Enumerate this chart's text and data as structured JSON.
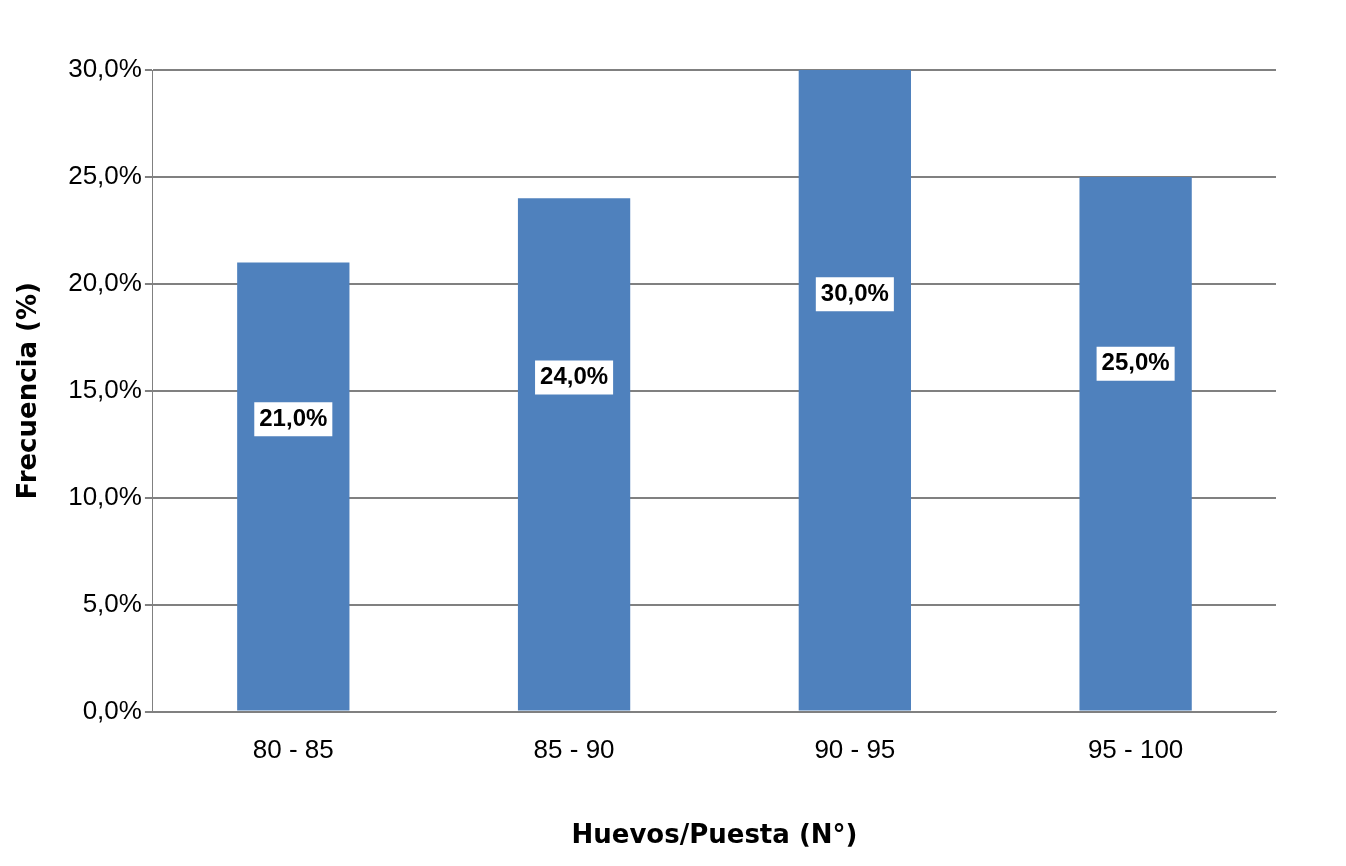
{
  "chart_data": {
    "type": "bar",
    "xlabel": "Huevos/Puesta (N°)",
    "ylabel": "Frecuencia (%)",
    "categories": [
      "80 - 85",
      "85 - 90",
      "90 - 95",
      "95 - 100"
    ],
    "values": [
      21,
      24,
      30,
      25
    ],
    "value_labels": [
      "21,0%",
      "24,0%",
      "30,0%",
      "25,0%"
    ],
    "color": "#4f81bd",
    "ylim": [
      0,
      30
    ],
    "yticks": [
      {
        "value": 0,
        "label": "0,0%"
      },
      {
        "value": 5,
        "label": "5,0%"
      },
      {
        "value": 10,
        "label": "10,0%"
      },
      {
        "value": 15,
        "label": "15,0%"
      },
      {
        "value": 20,
        "label": "20,0%"
      },
      {
        "value": 25,
        "label": "25,0%"
      },
      {
        "value": 30,
        "label": "30,0%"
      }
    ],
    "grid": "y",
    "legend": false
  }
}
